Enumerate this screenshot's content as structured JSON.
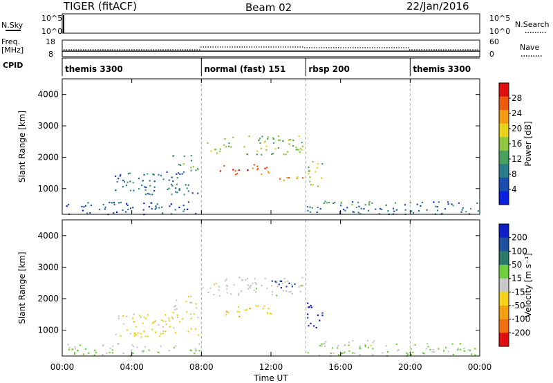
{
  "header": {
    "title": "TIGER (fitACF)",
    "beam": "Beam 02",
    "date": "22/Jan/2016"
  },
  "strip": {
    "nsky_label": "N.Sky",
    "nsky_ticks": [
      "10^5",
      "10^0"
    ],
    "nsearch_label": "N.Search",
    "freq_label": "Freq.",
    "freq_unit": "[MHz]",
    "freq_ticks": [
      "18",
      "8"
    ],
    "nave_label": "Nave",
    "nave_ticks": [
      "60",
      "0"
    ],
    "cpid_label": "CPID",
    "cpid_segments": [
      {
        "label": "themis 3300",
        "start": 0,
        "end": 8
      },
      {
        "label": "normal (fast) 151",
        "start": 8,
        "end": 14
      },
      {
        "label": "rbsp 200",
        "start": 14,
        "end": 20
      },
      {
        "label": "themis 3300",
        "start": 20,
        "end": 24
      }
    ]
  },
  "chart_data": [
    {
      "type": "heatmap",
      "ylabel": "Slant Range [km]",
      "xlabel": "Time UT",
      "x_ticks": [
        "00:00",
        "04:00",
        "08:00",
        "12:00",
        "16:00",
        "20:00",
        "00:00"
      ],
      "x_range_hours": [
        0,
        24
      ],
      "y_ticks": [
        1000,
        2000,
        3000,
        4000
      ],
      "ylim": [
        180,
        4500
      ],
      "colorbar": {
        "label": "Power [dB]",
        "ticks": [
          "4",
          "8",
          "12",
          "16",
          "20",
          "24",
          "28"
        ],
        "range": [
          0,
          30
        ],
        "colors": [
          "#0a1fe0",
          "#1a4fb0",
          "#2a7c8a",
          "#49a060",
          "#8fc640",
          "#e6d21a",
          "#f29a12",
          "#ee5a10",
          "#e00f0f"
        ]
      },
      "features": [
        {
          "t_start": 0.2,
          "t_end": 7.9,
          "r_low": 200,
          "r_high": 600,
          "value": 5
        },
        {
          "t_start": 3.0,
          "t_end": 7.8,
          "r_low": 800,
          "r_high": 1600,
          "value": 8
        },
        {
          "t_start": 6.3,
          "t_end": 7.8,
          "r_low": 1600,
          "r_high": 2100,
          "value": 12
        },
        {
          "t_start": 8.0,
          "t_end": 13.8,
          "r_low": 2100,
          "r_high": 2700,
          "value": 14
        },
        {
          "t_start": 9.0,
          "t_end": 12.0,
          "r_low": 1450,
          "r_high": 1800,
          "value": 26
        },
        {
          "t_start": 12.0,
          "t_end": 14.0,
          "r_low": 1200,
          "r_high": 1400,
          "value": 22
        },
        {
          "t_start": 14.0,
          "t_end": 15.0,
          "r_low": 1100,
          "r_high": 1900,
          "value": 16
        },
        {
          "t_start": 14.0,
          "t_end": 24.0,
          "r_low": 200,
          "r_high": 600,
          "value": 7
        },
        {
          "t_start": 15.0,
          "t_end": 18.0,
          "r_low": 500,
          "r_high": 700,
          "value": 13
        }
      ]
    },
    {
      "type": "heatmap",
      "ylabel": "Slant Range [km]",
      "xlabel": "Time UT",
      "x_ticks": [
        "00:00",
        "04:00",
        "08:00",
        "12:00",
        "16:00",
        "20:00",
        "00:00"
      ],
      "x_range_hours": [
        0,
        24
      ],
      "y_ticks": [
        1000,
        2000,
        3000,
        4000
      ],
      "ylim": [
        180,
        4500
      ],
      "colorbar": {
        "label": "Velocity [m s⁻¹]",
        "ticks": [
          "200",
          "100",
          "50",
          "15",
          "-15",
          "-50",
          "-100",
          "-200"
        ],
        "range": [
          -250,
          250
        ],
        "colors": [
          "#1020c8",
          "#2050a0",
          "#2e7a6a",
          "#6fcf3a",
          "#c8c8c8",
          "#f5d21a",
          "#f0a010",
          "#f07010",
          "#e01010"
        ]
      },
      "features": [
        {
          "t_start": 0.2,
          "t_end": 7.9,
          "r_low": 200,
          "r_high": 600,
          "value": 30
        },
        {
          "t_start": 3.0,
          "t_end": 7.8,
          "r_low": 800,
          "r_high": 1600,
          "value": -40
        },
        {
          "t_start": 6.3,
          "t_end": 7.8,
          "r_low": 1600,
          "r_high": 2100,
          "value": -10
        },
        {
          "t_start": 8.0,
          "t_end": 13.8,
          "r_low": 2100,
          "r_high": 2700,
          "value": 0
        },
        {
          "t_start": 9.0,
          "t_end": 12.0,
          "r_low": 1450,
          "r_high": 1800,
          "value": -60
        },
        {
          "t_start": 12.0,
          "t_end": 14.0,
          "r_low": 2300,
          "r_high": 2600,
          "value": 180
        },
        {
          "t_start": 14.0,
          "t_end": 15.0,
          "r_low": 1100,
          "r_high": 1900,
          "value": 220
        },
        {
          "t_start": 14.0,
          "t_end": 24.0,
          "r_low": 200,
          "r_high": 600,
          "value": 40
        },
        {
          "t_start": 15.0,
          "t_end": 18.0,
          "r_low": 500,
          "r_high": 700,
          "value": -5
        }
      ]
    }
  ]
}
